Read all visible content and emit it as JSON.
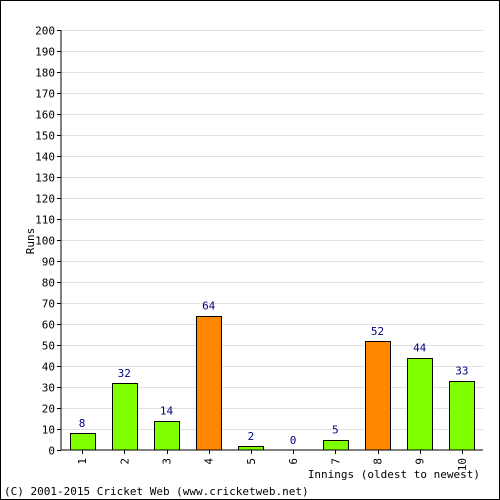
{
  "chart_data": {
    "type": "bar",
    "categories": [
      "1",
      "2",
      "3",
      "4",
      "5",
      "6",
      "7",
      "8",
      "9",
      "10"
    ],
    "values": [
      8,
      32,
      14,
      64,
      2,
      0,
      5,
      52,
      44,
      33
    ],
    "bar_colors": [
      "#80ff00",
      "#80ff00",
      "#80ff00",
      "#ff8800",
      "#80ff00",
      "#80ff00",
      "#80ff00",
      "#ff8800",
      "#80ff00",
      "#80ff00"
    ],
    "value_label_color": "#000080",
    "ylabel": "Runs",
    "xlabel": "Innings (oldest to newest)",
    "ylim": [
      0,
      200
    ],
    "yticks": [
      0,
      10,
      20,
      30,
      40,
      50,
      60,
      70,
      80,
      90,
      100,
      110,
      120,
      130,
      140,
      150,
      160,
      170,
      180,
      190,
      200
    ],
    "grid": true
  },
  "footer": {
    "copyright": "(C) 2001-2015 Cricket Web (www.cricketweb.net)"
  }
}
